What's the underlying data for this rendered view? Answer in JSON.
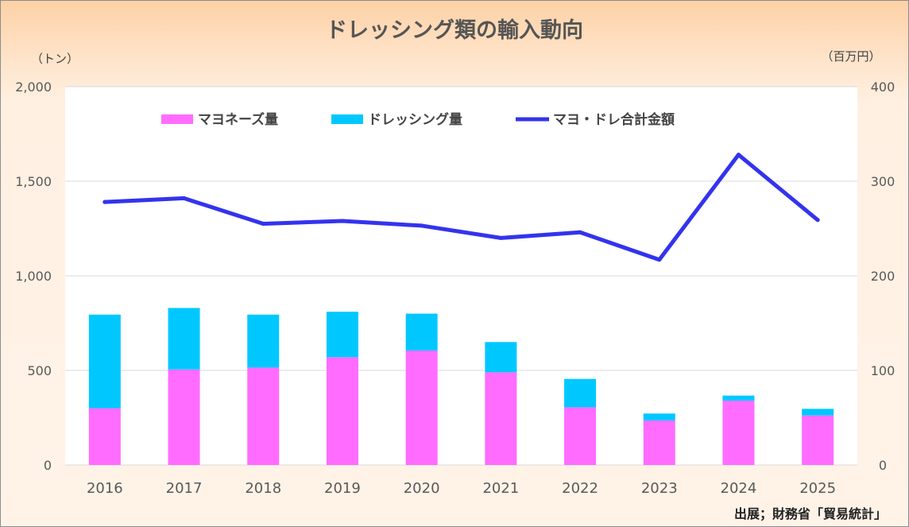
{
  "chart_data": {
    "type": "bar+line",
    "title": "ドレッシング類の輸入動向",
    "left_unit": "（トン）",
    "right_unit": "（百万円）",
    "source": "出展；財務省「貿易統計」",
    "categories": [
      "2016",
      "2017",
      "2018",
      "2019",
      "2020",
      "2021",
      "2022",
      "2023",
      "2024",
      "2025"
    ],
    "left_axis": {
      "min": 0,
      "max": 2000,
      "ticks": [
        "0",
        "500",
        "1,000",
        "1,500",
        "2,000"
      ],
      "tick_values": [
        0,
        500,
        1000,
        1500,
        2000
      ]
    },
    "right_axis": {
      "min": 0,
      "max": 400,
      "ticks": [
        "0",
        "100",
        "200",
        "300",
        "400"
      ],
      "tick_values": [
        0,
        100,
        200,
        300,
        400
      ]
    },
    "series": [
      {
        "name": "マヨネーズ量",
        "type": "stacked-bar",
        "axis": "left",
        "color": "#ff6cff",
        "values": [
          300,
          505,
          515,
          570,
          605,
          490,
          305,
          235,
          340,
          262
        ]
      },
      {
        "name": "ドレッシング量",
        "type": "stacked-bar",
        "axis": "left",
        "color": "#00c8ff",
        "values": [
          495,
          325,
          280,
          240,
          195,
          160,
          150,
          37,
          27,
          35
        ]
      },
      {
        "name": "マヨ・ドレ合計金額",
        "type": "line",
        "axis": "right",
        "color": "#3333ee",
        "values": [
          278,
          282,
          255,
          258,
          253,
          240,
          246,
          217,
          328,
          259
        ]
      }
    ],
    "grid": true,
    "legend_position": "top"
  }
}
